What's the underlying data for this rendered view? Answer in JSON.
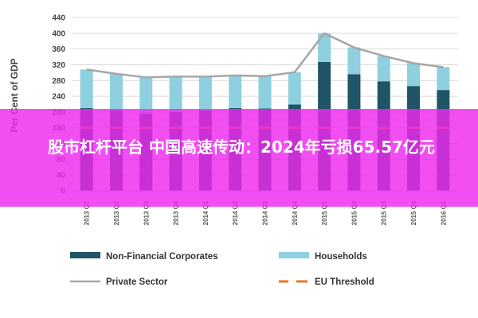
{
  "banner": {
    "title": "股市杠杆平台 中国高速传动：2024年亏损65.57亿元",
    "color": "#ee28ee"
  },
  "chart_data": {
    "type": "bar",
    "stacked": true,
    "title": "",
    "xlabel": "",
    "ylabel": "Per Cent of GDP",
    "ylim": [
      0,
      440
    ],
    "yticks": [
      0,
      40,
      80,
      120,
      160,
      200,
      240,
      280,
      320,
      360,
      400,
      440
    ],
    "grid": true,
    "legend_position": "bottom",
    "categories": [
      "2013 Q1",
      "2013 Q2",
      "2013 Q3",
      "2013 Q4",
      "2014 Q1",
      "2014 Q2",
      "2014 Q3",
      "2014 Q4",
      "2015 Q1",
      "2015 Q2",
      "2015 Q3",
      "2015 Q4",
      "2016 Q1"
    ],
    "series": [
      {
        "name": "Non-Financial Corporates",
        "kind": "bar",
        "color": "#1f5566",
        "values": [
          210,
          205,
          196,
          200,
          204,
          210,
          209,
          219,
          327,
          296,
          278,
          266,
          256
        ]
      },
      {
        "name": "Households",
        "kind": "bar",
        "color": "#8ecfe0",
        "values": [
          98,
          92,
          92,
          90,
          86,
          83,
          82,
          82,
          73,
          68,
          64,
          58,
          58
        ]
      },
      {
        "name": "Private Sector",
        "kind": "line",
        "color": "#a6a6a6",
        "values": [
          308,
          297,
          288,
          290,
          290,
          293,
          291,
          301,
          400,
          364,
          342,
          324,
          314
        ]
      },
      {
        "name": "EU Threshold",
        "kind": "threshold",
        "color": "#e8742a",
        "value": 160
      }
    ]
  }
}
